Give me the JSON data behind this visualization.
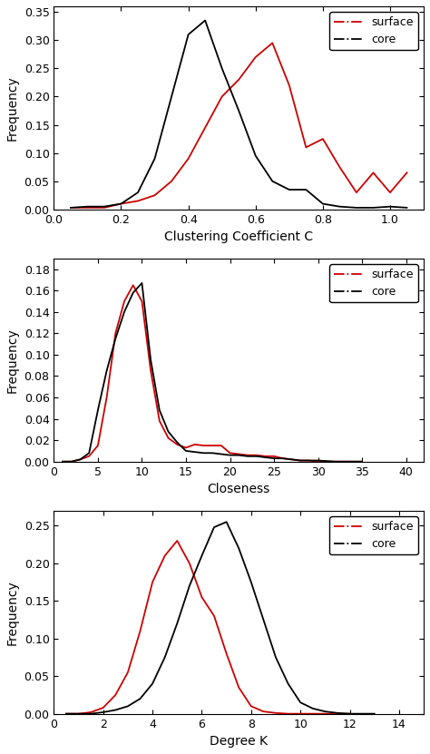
{
  "plot1": {
    "xlabel": "Clustering Coefficient C",
    "ylabel": "Frequency",
    "xlim": [
      0.0,
      1.1
    ],
    "ylim": [
      0.0,
      0.36
    ],
    "yticks": [
      0.0,
      0.05,
      0.1,
      0.15,
      0.2,
      0.25,
      0.3,
      0.35
    ],
    "xticks": [
      0.0,
      0.2,
      0.4,
      0.6,
      0.8,
      1.0
    ],
    "surface_x": [
      0.05,
      0.1,
      0.15,
      0.2,
      0.25,
      0.3,
      0.35,
      0.4,
      0.45,
      0.5,
      0.55,
      0.6,
      0.65,
      0.7,
      0.75,
      0.8,
      0.85,
      0.9,
      0.95,
      1.0,
      1.05
    ],
    "surface_y": [
      0.003,
      0.003,
      0.003,
      0.01,
      0.015,
      0.025,
      0.05,
      0.09,
      0.145,
      0.2,
      0.23,
      0.27,
      0.295,
      0.22,
      0.11,
      0.125,
      0.075,
      0.03,
      0.065,
      0.03,
      0.065
    ],
    "core_x": [
      0.05,
      0.1,
      0.15,
      0.2,
      0.25,
      0.3,
      0.35,
      0.4,
      0.45,
      0.5,
      0.55,
      0.6,
      0.65,
      0.7,
      0.75,
      0.8,
      0.85,
      0.9,
      0.95,
      1.0,
      1.05
    ],
    "core_y": [
      0.003,
      0.005,
      0.005,
      0.01,
      0.03,
      0.09,
      0.2,
      0.31,
      0.335,
      0.25,
      0.175,
      0.095,
      0.05,
      0.035,
      0.035,
      0.01,
      0.005,
      0.003,
      0.003,
      0.005,
      0.003
    ]
  },
  "plot2": {
    "xlabel": "Closeness",
    "ylabel": "Frequency",
    "xlim": [
      0,
      42
    ],
    "ylim": [
      0.0,
      0.19
    ],
    "yticks": [
      0.0,
      0.02,
      0.04,
      0.06,
      0.08,
      0.1,
      0.12,
      0.14,
      0.16,
      0.18
    ],
    "xticks": [
      0,
      5,
      10,
      15,
      20,
      25,
      30,
      35,
      40
    ],
    "surface_x": [
      1,
      2,
      3,
      4,
      5,
      6,
      7,
      8,
      9,
      10,
      11,
      12,
      13,
      14,
      15,
      16,
      17,
      18,
      19,
      20,
      21,
      22,
      23,
      24,
      25,
      26,
      27,
      28,
      29,
      30,
      32,
      35
    ],
    "surface_y": [
      0.0,
      0.0,
      0.002,
      0.005,
      0.015,
      0.06,
      0.12,
      0.15,
      0.165,
      0.15,
      0.085,
      0.038,
      0.022,
      0.016,
      0.013,
      0.016,
      0.015,
      0.015,
      0.015,
      0.008,
      0.007,
      0.006,
      0.006,
      0.005,
      0.005,
      0.003,
      0.002,
      0.001,
      0.001,
      0.0,
      0.0,
      0.0
    ],
    "core_x": [
      1,
      2,
      3,
      4,
      5,
      6,
      7,
      8,
      9,
      10,
      11,
      12,
      13,
      14,
      15,
      16,
      17,
      18,
      19,
      20,
      21,
      22,
      23,
      24,
      25,
      26,
      27,
      28,
      29,
      30,
      32,
      35
    ],
    "core_y": [
      0.0,
      0.0,
      0.002,
      0.008,
      0.048,
      0.085,
      0.115,
      0.14,
      0.158,
      0.167,
      0.095,
      0.048,
      0.028,
      0.018,
      0.01,
      0.009,
      0.008,
      0.008,
      0.007,
      0.006,
      0.006,
      0.005,
      0.005,
      0.004,
      0.003,
      0.003,
      0.002,
      0.001,
      0.001,
      0.001,
      0.0,
      0.0
    ]
  },
  "plot3": {
    "xlabel": "Degree K",
    "ylabel": "Frequency",
    "xlim": [
      0,
      15
    ],
    "ylim": [
      0.0,
      0.27
    ],
    "yticks": [
      0.0,
      0.05,
      0.1,
      0.15,
      0.2,
      0.25
    ],
    "xticks": [
      0,
      2,
      4,
      6,
      8,
      10,
      12,
      14
    ],
    "surface_x": [
      0.5,
      1.0,
      1.5,
      2.0,
      2.5,
      3.0,
      3.5,
      4.0,
      4.5,
      5.0,
      5.5,
      6.0,
      6.5,
      7.0,
      7.5,
      8.0,
      8.5,
      9.0,
      9.5,
      10.0,
      10.5,
      11.0,
      11.5,
      12.0
    ],
    "surface_y": [
      0.0,
      0.0,
      0.002,
      0.008,
      0.025,
      0.055,
      0.11,
      0.175,
      0.21,
      0.23,
      0.2,
      0.155,
      0.13,
      0.08,
      0.035,
      0.01,
      0.003,
      0.001,
      0.0,
      0.0,
      0.0,
      0.0,
      0.0,
      0.0
    ],
    "core_x": [
      0.5,
      1.0,
      1.5,
      2.0,
      2.5,
      3.0,
      3.5,
      4.0,
      4.5,
      5.0,
      5.5,
      6.0,
      6.5,
      7.0,
      7.5,
      8.0,
      8.5,
      9.0,
      9.5,
      10.0,
      10.5,
      11.0,
      11.5,
      12.0,
      12.5,
      13.0
    ],
    "core_y": [
      0.0,
      0.0,
      0.0,
      0.002,
      0.005,
      0.01,
      0.02,
      0.04,
      0.075,
      0.12,
      0.17,
      0.21,
      0.248,
      0.255,
      0.22,
      0.175,
      0.125,
      0.075,
      0.04,
      0.015,
      0.007,
      0.003,
      0.001,
      0.0,
      0.0,
      0.0
    ]
  },
  "surface_color": "#cc0000",
  "core_color": "#000000",
  "surface_label": "surface",
  "core_label": "core",
  "linewidth": 1.3,
  "legend_fontsize": 9,
  "axis_label_fontsize": 10,
  "tick_fontsize": 9,
  "background_color": "#ffffff"
}
